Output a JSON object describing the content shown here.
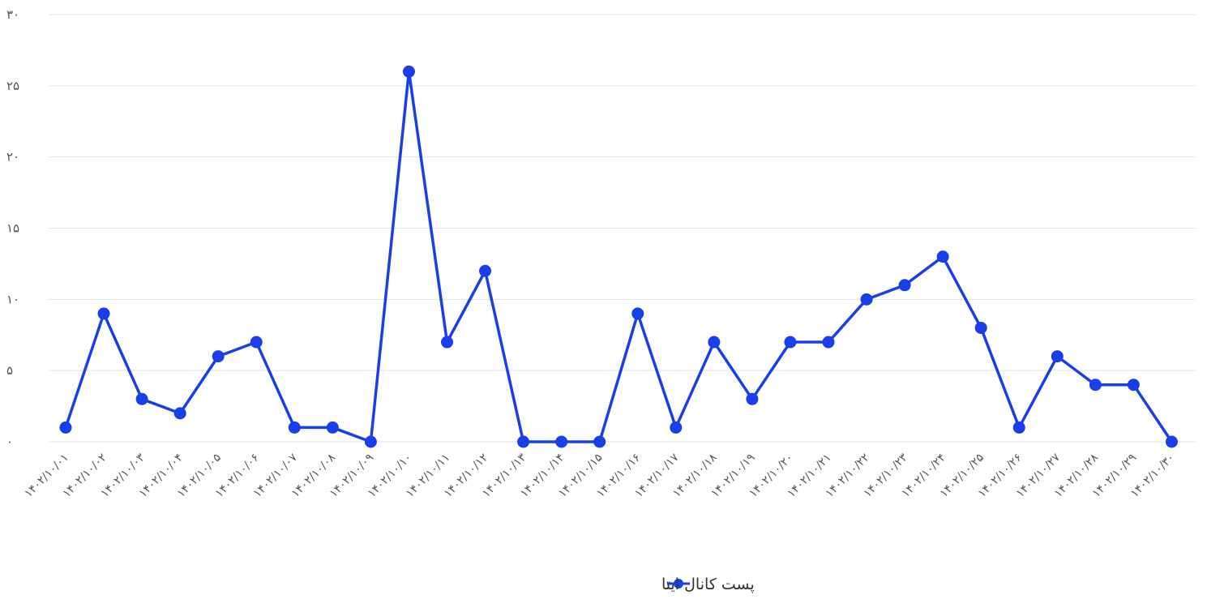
{
  "chart_data": {
    "type": "line",
    "title": "",
    "xlabel": "",
    "ylabel": "",
    "ylim": [
      0,
      30
    ],
    "y_ticks": [
      0,
      5,
      10,
      15,
      20,
      25,
      30
    ],
    "y_tick_labels": [
      "۰",
      "۵",
      "۱۰",
      "۱۵",
      "۲۰",
      "۲۵",
      "۳۰"
    ],
    "grid": "horizontal",
    "legend_position": "bottom-center",
    "categories": [
      "۱۴۰۲/۱۰/۰۱",
      "۱۴۰۲/۱۰/۰۲",
      "۱۴۰۲/۱۰/۰۳",
      "۱۴۰۲/۱۰/۰۴",
      "۱۴۰۲/۱۰/۰۵",
      "۱۴۰۲/۱۰/۰۶",
      "۱۴۰۲/۱۰/۰۷",
      "۱۴۰۲/۱۰/۰۸",
      "۱۴۰۲/۱۰/۰۹",
      "۱۴۰۲/۱۰/۱۰",
      "۱۴۰۲/۱۰/۱۱",
      "۱۴۰۲/۱۰/۱۲",
      "۱۴۰۲/۱۰/۱۳",
      "۱۴۰۲/۱۰/۱۴",
      "۱۴۰۲/۱۰/۱۵",
      "۱۴۰۲/۱۰/۱۶",
      "۱۴۰۲/۱۰/۱۷",
      "۱۴۰۲/۱۰/۱۸",
      "۱۴۰۲/۱۰/۱۹",
      "۱۴۰۲/۱۰/۲۰",
      "۱۴۰۲/۱۰/۲۱",
      "۱۴۰۲/۱۰/۲۲",
      "۱۴۰۲/۱۰/۲۳",
      "۱۴۰۲/۱۰/۲۴",
      "۱۴۰۲/۱۰/۲۵",
      "۱۴۰۲/۱۰/۲۶",
      "۱۴۰۲/۱۰/۲۷",
      "۱۴۰۲/۱۰/۲۸",
      "۱۴۰۲/۱۰/۲۹",
      "۱۴۰۲/۱۰/۳۰"
    ],
    "series": [
      {
        "name": "پست کانال ایتا",
        "color": "#1a3fe8",
        "values": [
          1,
          9,
          3,
          2,
          6,
          7,
          1,
          1,
          0,
          26,
          7,
          12,
          0,
          0,
          0,
          9,
          1,
          7,
          3,
          7,
          7,
          10,
          11,
          13,
          8,
          1,
          6,
          4,
          4,
          0
        ]
      }
    ]
  },
  "colors": {
    "grid": "#dfe3ea",
    "series": "#1a3fe8",
    "tick_text": "#555555"
  }
}
